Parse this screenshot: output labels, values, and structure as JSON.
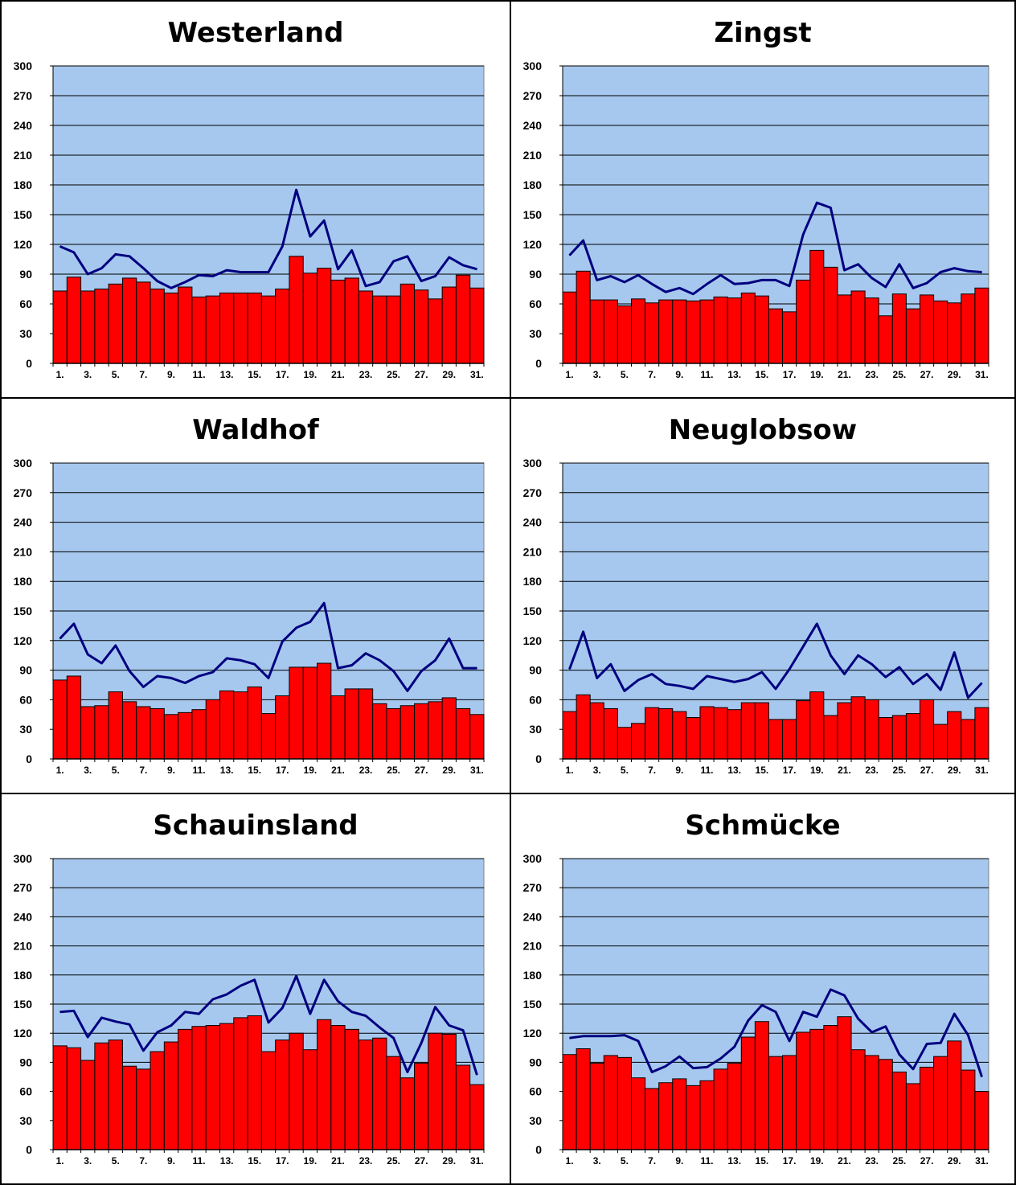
{
  "colors": {
    "plot_background": "#a6c8ee",
    "bar_fill": "#ff0000",
    "bar_stroke": "#000000",
    "line_stroke": "#000080",
    "gridline": "#000000"
  },
  "chart_data": [
    {
      "type": "bar",
      "title": "Westerland",
      "x": [
        1,
        2,
        3,
        4,
        5,
        6,
        7,
        8,
        9,
        10,
        11,
        12,
        13,
        14,
        15,
        16,
        17,
        18,
        19,
        20,
        21,
        22,
        23,
        24,
        25,
        26,
        27,
        28,
        29,
        30,
        31
      ],
      "x_tick_labels": [
        "1.",
        "3.",
        "5.",
        "7.",
        "9.",
        "11.",
        "13.",
        "15.",
        "17.",
        "19.",
        "21.",
        "23.",
        "25.",
        "27.",
        "29.",
        "31."
      ],
      "ylim": [
        0,
        300
      ],
      "y_ticks": [
        0,
        30,
        60,
        90,
        120,
        150,
        180,
        210,
        240,
        270,
        300
      ],
      "grid": true,
      "series": [
        {
          "type": "bar",
          "values": [
            73,
            87,
            73,
            75,
            80,
            86,
            82,
            75,
            71,
            77,
            67,
            68,
            71,
            71,
            71,
            68,
            75,
            108,
            91,
            96,
            84,
            86,
            73,
            68,
            68,
            80,
            74,
            65,
            77,
            89,
            76
          ]
        },
        {
          "type": "line",
          "values": [
            118,
            112,
            90,
            96,
            110,
            108,
            96,
            83,
            76,
            82,
            89,
            88,
            94,
            92,
            92,
            92,
            118,
            175,
            128,
            144,
            95,
            114,
            78,
            82,
            103,
            108,
            83,
            88,
            107,
            99,
            95
          ]
        }
      ]
    },
    {
      "type": "bar",
      "title": "Zingst",
      "x": [
        1,
        2,
        3,
        4,
        5,
        6,
        7,
        8,
        9,
        10,
        11,
        12,
        13,
        14,
        15,
        16,
        17,
        18,
        19,
        20,
        21,
        22,
        23,
        24,
        25,
        26,
        27,
        28,
        29,
        30,
        31
      ],
      "x_tick_labels": [
        "1.",
        "3.",
        "5.",
        "7.",
        "9.",
        "11.",
        "13.",
        "15.",
        "17.",
        "19.",
        "21.",
        "23.",
        "25.",
        "27.",
        "29.",
        "31."
      ],
      "ylim": [
        0,
        300
      ],
      "y_ticks": [
        0,
        30,
        60,
        90,
        120,
        150,
        180,
        210,
        240,
        270,
        300
      ],
      "grid": true,
      "series": [
        {
          "type": "bar",
          "values": [
            72,
            93,
            64,
            64,
            58,
            65,
            61,
            64,
            64,
            63,
            64,
            67,
            66,
            71,
            68,
            55,
            52,
            84,
            114,
            97,
            69,
            73,
            66,
            48,
            70,
            55,
            69,
            63,
            61,
            70,
            76
          ]
        },
        {
          "type": "line",
          "values": [
            109,
            124,
            84,
            88,
            82,
            89,
            80,
            72,
            76,
            70,
            80,
            89,
            80,
            81,
            84,
            84,
            78,
            130,
            162,
            157,
            94,
            100,
            86,
            77,
            100,
            76,
            81,
            92,
            96,
            93,
            92
          ]
        }
      ]
    },
    {
      "type": "bar",
      "title": "Waldhof",
      "x": [
        1,
        2,
        3,
        4,
        5,
        6,
        7,
        8,
        9,
        10,
        11,
        12,
        13,
        14,
        15,
        16,
        17,
        18,
        19,
        20,
        21,
        22,
        23,
        24,
        25,
        26,
        27,
        28,
        29,
        30,
        31
      ],
      "x_tick_labels": [
        "1.",
        "3.",
        "5.",
        "7.",
        "9.",
        "11.",
        "13.",
        "15.",
        "17.",
        "19.",
        "21.",
        "23.",
        "25.",
        "27.",
        "29.",
        "31."
      ],
      "ylim": [
        0,
        300
      ],
      "y_ticks": [
        0,
        30,
        60,
        90,
        120,
        150,
        180,
        210,
        240,
        270,
        300
      ],
      "grid": true,
      "series": [
        {
          "type": "bar",
          "values": [
            80,
            84,
            53,
            54,
            68,
            58,
            53,
            51,
            45,
            47,
            50,
            60,
            69,
            68,
            73,
            46,
            64,
            93,
            93,
            97,
            64,
            71,
            71,
            56,
            51,
            54,
            56,
            58,
            62,
            51,
            45
          ]
        },
        {
          "type": "line",
          "values": [
            122,
            137,
            106,
            97,
            115,
            89,
            73,
            84,
            82,
            77,
            84,
            88,
            102,
            100,
            96,
            82,
            119,
            133,
            139,
            158,
            92,
            95,
            107,
            100,
            89,
            69,
            89,
            100,
            122,
            92,
            92
          ]
        }
      ]
    },
    {
      "type": "bar",
      "title": "Neuglobsow",
      "x": [
        1,
        2,
        3,
        4,
        5,
        6,
        7,
        8,
        9,
        10,
        11,
        12,
        13,
        14,
        15,
        16,
        17,
        18,
        19,
        20,
        21,
        22,
        23,
        24,
        25,
        26,
        27,
        28,
        29,
        30,
        31
      ],
      "x_tick_labels": [
        "1.",
        "3.",
        "5.",
        "7.",
        "9.",
        "11.",
        "13.",
        "15.",
        "17.",
        "19.",
        "21.",
        "23.",
        "25.",
        "27.",
        "29.",
        "31."
      ],
      "ylim": [
        0,
        300
      ],
      "y_ticks": [
        0,
        30,
        60,
        90,
        120,
        150,
        180,
        210,
        240,
        270,
        300
      ],
      "grid": true,
      "series": [
        {
          "type": "bar",
          "values": [
            48,
            65,
            57,
            51,
            32,
            36,
            52,
            51,
            48,
            42,
            53,
            52,
            50,
            57,
            57,
            40,
            40,
            59,
            68,
            44,
            57,
            63,
            60,
            42,
            44,
            46,
            60,
            35,
            48,
            40,
            52
          ]
        },
        {
          "type": "line",
          "values": [
            91,
            129,
            82,
            96,
            69,
            80,
            86,
            76,
            74,
            71,
            84,
            81,
            78,
            81,
            88,
            71,
            91,
            114,
            137,
            105,
            86,
            105,
            96,
            83,
            93,
            76,
            86,
            70,
            108,
            62,
            77
          ]
        }
      ]
    },
    {
      "type": "bar",
      "title": "Schauinsland",
      "x": [
        1,
        2,
        3,
        4,
        5,
        6,
        7,
        8,
        9,
        10,
        11,
        12,
        13,
        14,
        15,
        16,
        17,
        18,
        19,
        20,
        21,
        22,
        23,
        24,
        25,
        26,
        27,
        28,
        29,
        30,
        31
      ],
      "x_tick_labels": [
        "1.",
        "3.",
        "5.",
        "7.",
        "9.",
        "11.",
        "13.",
        "15.",
        "17.",
        "19.",
        "21.",
        "23.",
        "25.",
        "27.",
        "29.",
        "31."
      ],
      "ylim": [
        0,
        300
      ],
      "y_ticks": [
        0,
        30,
        60,
        90,
        120,
        150,
        180,
        210,
        240,
        270,
        300
      ],
      "grid": true,
      "series": [
        {
          "type": "bar",
          "values": [
            107,
            105,
            92,
            110,
            113,
            86,
            83,
            101,
            111,
            124,
            127,
            128,
            130,
            136,
            138,
            101,
            113,
            120,
            103,
            134,
            128,
            124,
            113,
            115,
            96,
            74,
            89,
            120,
            119,
            87,
            67
          ]
        },
        {
          "type": "line",
          "values": [
            142,
            143,
            116,
            136,
            132,
            129,
            102,
            121,
            128,
            142,
            140,
            155,
            160,
            169,
            175,
            131,
            146,
            179,
            140,
            175,
            153,
            142,
            138,
            126,
            115,
            80,
            110,
            147,
            128,
            123,
            77
          ]
        }
      ]
    },
    {
      "type": "bar",
      "title": "Schmücke",
      "x": [
        1,
        2,
        3,
        4,
        5,
        6,
        7,
        8,
        9,
        10,
        11,
        12,
        13,
        14,
        15,
        16,
        17,
        18,
        19,
        20,
        21,
        22,
        23,
        24,
        25,
        26,
        27,
        28,
        29,
        30,
        31
      ],
      "x_tick_labels": [
        "1.",
        "3.",
        "5.",
        "7.",
        "9.",
        "11.",
        "13.",
        "15.",
        "17.",
        "19.",
        "21.",
        "23.",
        "25.",
        "27.",
        "29.",
        "31."
      ],
      "ylim": [
        0,
        300
      ],
      "y_ticks": [
        0,
        30,
        60,
        90,
        120,
        150,
        180,
        210,
        240,
        270,
        300
      ],
      "grid": true,
      "series": [
        {
          "type": "bar",
          "values": [
            98,
            104,
            89,
            97,
            95,
            74,
            63,
            69,
            73,
            66,
            71,
            83,
            89,
            116,
            132,
            96,
            97,
            121,
            124,
            128,
            137,
            103,
            97,
            93,
            80,
            68,
            85,
            96,
            112,
            82,
            60
          ]
        },
        {
          "type": "line",
          "values": [
            115,
            117,
            117,
            117,
            118,
            112,
            80,
            86,
            96,
            84,
            85,
            94,
            106,
            133,
            149,
            142,
            112,
            142,
            137,
            165,
            159,
            135,
            121,
            127,
            98,
            83,
            109,
            110,
            140,
            118,
            75
          ]
        }
      ]
    }
  ]
}
